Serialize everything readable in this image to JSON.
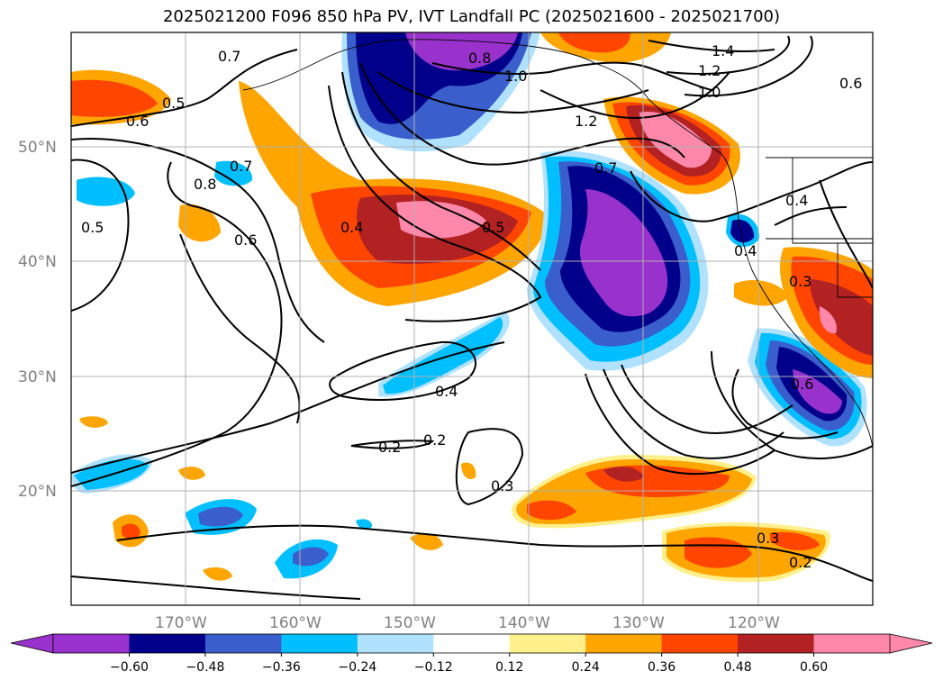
{
  "title": "2025021200 F096 850 hPa PV, IVT Landfall PC (2025021600 - 2025021700)",
  "map": {
    "lon_range": [
      -180,
      -110
    ],
    "lat_range": [
      10,
      60
    ],
    "lat_ticks": [
      {
        "value": 50,
        "label": "50°N"
      },
      {
        "value": 40,
        "label": "40°N"
      },
      {
        "value": 30,
        "label": "30°N"
      },
      {
        "value": 20,
        "label": "20°N"
      }
    ],
    "lon_ticks": [
      {
        "value": -170,
        "label": "170°W"
      },
      {
        "value": -160,
        "label": "160°W"
      },
      {
        "value": -150,
        "label": "150°W"
      },
      {
        "value": -140,
        "label": "140°W"
      },
      {
        "value": -130,
        "label": "130°W"
      },
      {
        "value": -120,
        "label": "120°W"
      }
    ],
    "grid": true,
    "contour_labels": [
      "0.7",
      "0.8",
      "1.0",
      "1.4",
      "1.2",
      "1.0",
      "0.6",
      "0.5",
      "0.6",
      "0.7",
      "0.8",
      "0.6",
      "0.5",
      "0.4",
      "0.5",
      "1.2",
      "0.7",
      "0.4",
      "0.4",
      "0.3",
      "0.4",
      "0.2",
      "0.2",
      "0.3",
      "0.6",
      "0.3",
      "0.2"
    ]
  },
  "colorbar": {
    "colors": [
      "#9932cc",
      "#00008b",
      "#3a5fcd",
      "#00bfff",
      "#b0e2ff",
      "#ffffff",
      "#fff08c",
      "#ffa500",
      "#ff4500",
      "#b22222",
      "#ff88aa"
    ],
    "ticks": [
      "−0.60",
      "−0.48",
      "−0.36",
      "−0.24",
      "−0.12",
      "0.12",
      "0.24",
      "0.36",
      "0.48",
      "0.60"
    ]
  }
}
